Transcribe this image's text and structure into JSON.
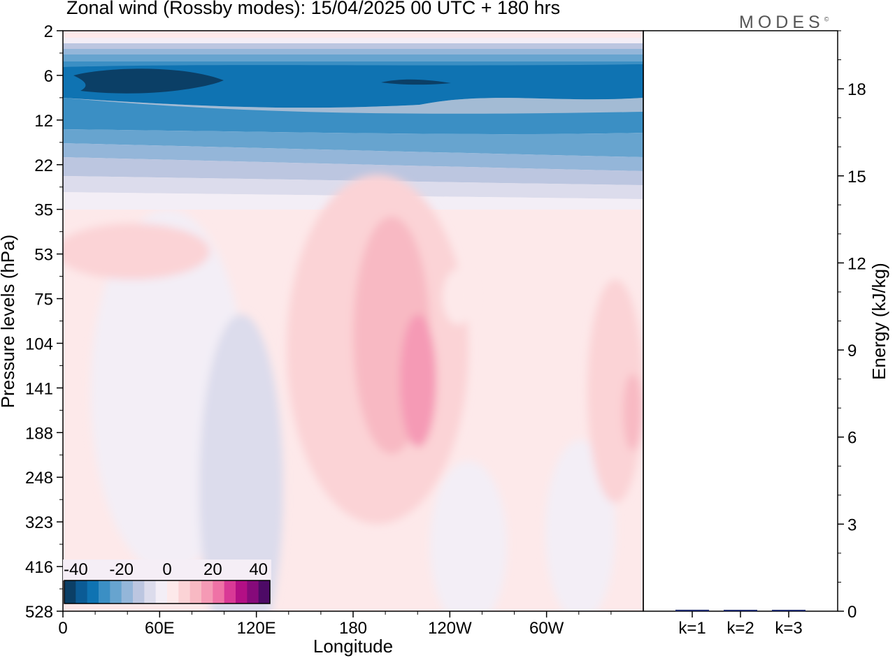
{
  "title": "Zonal wind (Rossby modes):  15/04/2025  00 UTC  + 180 hrs",
  "logo": "MODES",
  "logo_mark": "©",
  "chart_data": [
    {
      "type": "heatmap",
      "xlabel": "Longitude",
      "ylabel": "Pressure levels (hPa)",
      "x_ticks": [
        "0",
        "60E",
        "120E",
        "180",
        "120W",
        "60W"
      ],
      "y_ticks": [
        "2",
        "6",
        "12",
        "22",
        "35",
        "53",
        "75",
        "104",
        "141",
        "188",
        "248",
        "323",
        "416",
        "528"
      ],
      "colorbar_labels": [
        "-40",
        "-20",
        "0",
        "20",
        "40"
      ],
      "colorbar_range": [
        -45,
        45
      ],
      "colorbar_colors": [
        "#0b3f66",
        "#0b5b95",
        "#0f73b2",
        "#3b8fc4",
        "#67a4cf",
        "#94b6d9",
        "#bcc6e0",
        "#dcdcec",
        "#f3eef6",
        "#fde9ea",
        "#fbd3d6",
        "#f8b9c3",
        "#f59ab5",
        "#ef72a6",
        "#d93996",
        "#b30f85",
        "#860a7a",
        "#4d0a66"
      ],
      "features": [
        {
          "region": "upper levels",
          "value": -30
        },
        {
          "region": "jet core near 6 hPa",
          "value": -40
        },
        {
          "region": "lower levels",
          "value": 3
        },
        {
          "region": "maximum near 160W at 104–188 hPa",
          "value": 15
        }
      ]
    },
    {
      "type": "bar",
      "ylabel": "Energy (kJ/kg)",
      "categories": [
        "k=1",
        "k=2",
        "k=3"
      ],
      "values": [
        0.05,
        0.03,
        0.02
      ],
      "ylim": [
        0,
        20
      ],
      "y_ticks": [
        "0",
        "3",
        "6",
        "9",
        "12",
        "15",
        "18"
      ]
    }
  ]
}
